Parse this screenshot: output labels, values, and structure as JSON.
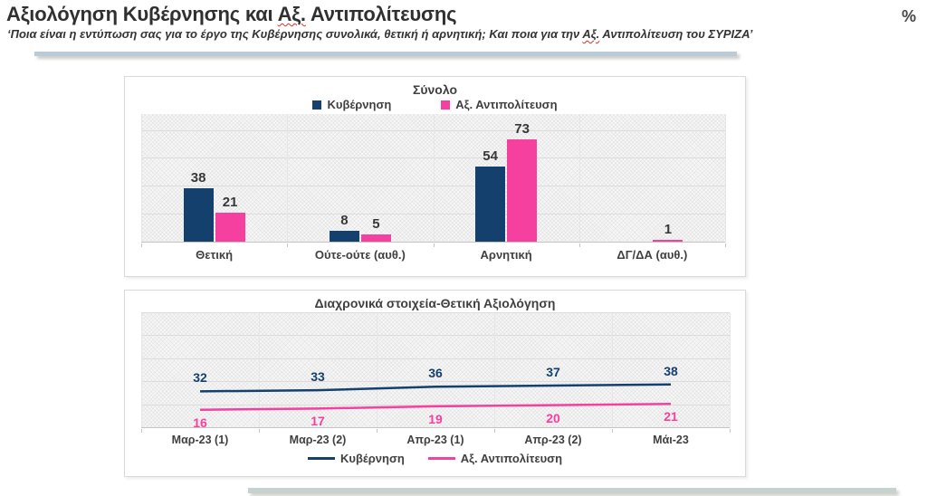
{
  "header": {
    "title": {
      "pre": "Αξιολόγηση Κυβέρνησης και ",
      "marked": "Αξ.",
      "post": " Αντιπολίτευσης"
    },
    "unit_symbol": "%",
    "subtitle": {
      "pre": "‘Ποια είναι η εντύπωση σας για το έργο της Κυβέρνησης συνολικά, θετική ή αρνητική; Και ποια για την ",
      "marked": "Αξ.",
      "post": " Αντιπολίτευση του ΣΥΡΙΖΑ’"
    }
  },
  "colors": {
    "government": "#14406e",
    "opposition": "#f5409f",
    "spellcheck_underline": "#d93025",
    "deco_bar_top": "#b9cbd6",
    "deco_bar_bottom": "#c6d2d0"
  },
  "chart_data": [
    {
      "type": "bar",
      "title": "Σύνολο",
      "categories": [
        "Θετική",
        "Ούτε-ούτε (αυθ.)",
        "Αρνητική",
        "ΔΓ/ΔΑ (αυθ.)"
      ],
      "series": [
        {
          "name": "Κυβέρνηση",
          "color": "#14406e",
          "values": [
            38,
            8,
            54,
            null
          ]
        },
        {
          "name": "Αξ. Αντιπολίτευση",
          "color": "#f5409f",
          "values": [
            21,
            5,
            73,
            1
          ]
        }
      ],
      "ylim": [
        0,
        92
      ],
      "gridline_step": 20,
      "grid": true,
      "legend_position": "top",
      "data_labels": true
    },
    {
      "type": "line",
      "title": "Διαχρονικά στοιχεία-Θετική Αξιολόγηση",
      "categories": [
        "Μαρ-23 (1)",
        "Μαρ-23 (2)",
        "Απρ-23 (1)",
        "Απρ-23 (2)",
        "Μάι-23"
      ],
      "series": [
        {
          "name": "Κυβέρνηση",
          "color": "#14406e",
          "values": [
            32,
            33,
            36,
            37,
            38
          ]
        },
        {
          "name": "Αξ. Αντιπολίτευση",
          "color": "#f5409f",
          "values": [
            16,
            17,
            19,
            20,
            21
          ]
        }
      ],
      "ylim": [
        0,
        100
      ],
      "gridline_step": 20,
      "grid": true,
      "legend_position": "bottom",
      "data_labels": true
    }
  ]
}
